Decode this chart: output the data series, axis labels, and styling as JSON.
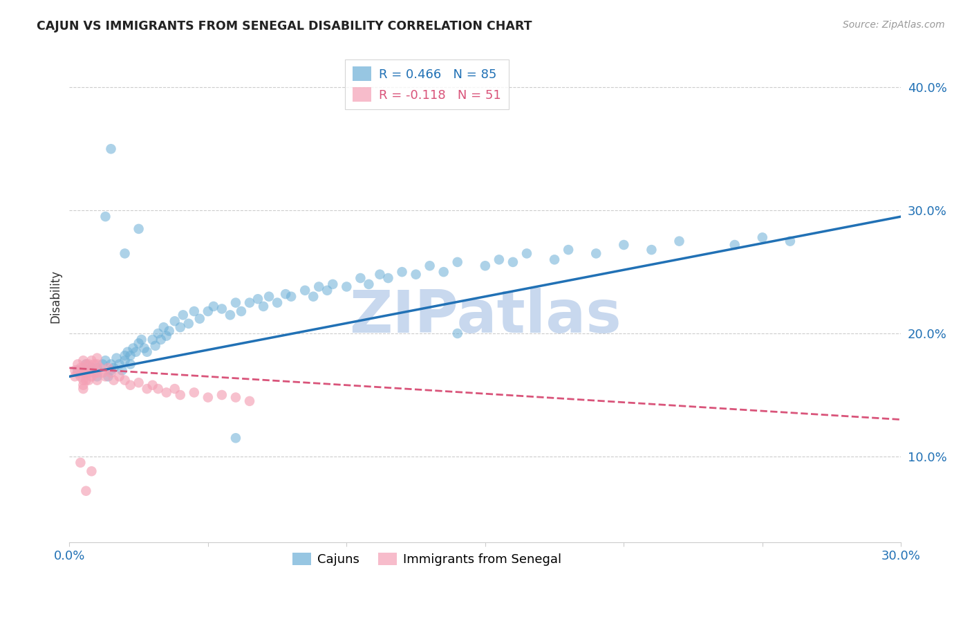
{
  "title": "CAJUN VS IMMIGRANTS FROM SENEGAL DISABILITY CORRELATION CHART",
  "source": "Source: ZipAtlas.com",
  "ylabel": "Disability",
  "xlim": [
    0.0,
    0.3
  ],
  "ylim": [
    0.03,
    0.43
  ],
  "yticks": [
    0.1,
    0.2,
    0.3,
    0.4
  ],
  "xticks": [
    0.0,
    0.05,
    0.1,
    0.15,
    0.2,
    0.25,
    0.3
  ],
  "xtick_labels": [
    "0.0%",
    "",
    "",
    "",
    "",
    "",
    "30.0%"
  ],
  "ytick_labels": [
    "10.0%",
    "20.0%",
    "30.0%",
    "40.0%"
  ],
  "legend1_label": "R = 0.466   N = 85",
  "legend2_label": "R = -0.118   N = 51",
  "legend_bottom1": "Cajuns",
  "legend_bottom2": "Immigrants from Senegal",
  "blue_color": "#6baed6",
  "pink_color": "#f4a0b5",
  "blue_line_color": "#2171b5",
  "pink_line_color": "#d9547a",
  "watermark": "ZIPatlas",
  "watermark_color": "#c8d8ee",
  "background_color": "#ffffff",
  "blue_scatter_x": [
    0.003,
    0.006,
    0.008,
    0.01,
    0.01,
    0.012,
    0.013,
    0.014,
    0.015,
    0.015,
    0.016,
    0.017,
    0.018,
    0.019,
    0.02,
    0.02,
    0.021,
    0.022,
    0.022,
    0.023,
    0.024,
    0.025,
    0.026,
    0.027,
    0.028,
    0.03,
    0.031,
    0.032,
    0.033,
    0.034,
    0.035,
    0.036,
    0.038,
    0.04,
    0.041,
    0.043,
    0.045,
    0.047,
    0.05,
    0.052,
    0.055,
    0.058,
    0.06,
    0.062,
    0.065,
    0.068,
    0.07,
    0.072,
    0.075,
    0.078,
    0.08,
    0.085,
    0.088,
    0.09,
    0.093,
    0.095,
    0.1,
    0.105,
    0.108,
    0.112,
    0.115,
    0.12,
    0.125,
    0.13,
    0.135,
    0.14,
    0.15,
    0.155,
    0.16,
    0.165,
    0.175,
    0.18,
    0.19,
    0.2,
    0.21,
    0.22,
    0.24,
    0.25,
    0.26,
    0.14,
    0.06,
    0.025,
    0.02,
    0.013,
    0.015
  ],
  "blue_scatter_y": [
    0.17,
    0.175,
    0.172,
    0.172,
    0.165,
    0.175,
    0.178,
    0.165,
    0.17,
    0.175,
    0.172,
    0.18,
    0.175,
    0.17,
    0.182,
    0.178,
    0.185,
    0.175,
    0.182,
    0.188,
    0.185,
    0.192,
    0.195,
    0.188,
    0.185,
    0.195,
    0.19,
    0.2,
    0.195,
    0.205,
    0.198,
    0.202,
    0.21,
    0.205,
    0.215,
    0.208,
    0.218,
    0.212,
    0.218,
    0.222,
    0.22,
    0.215,
    0.225,
    0.218,
    0.225,
    0.228,
    0.222,
    0.23,
    0.225,
    0.232,
    0.23,
    0.235,
    0.23,
    0.238,
    0.235,
    0.24,
    0.238,
    0.245,
    0.24,
    0.248,
    0.245,
    0.25,
    0.248,
    0.255,
    0.25,
    0.258,
    0.255,
    0.26,
    0.258,
    0.265,
    0.26,
    0.268,
    0.265,
    0.272,
    0.268,
    0.275,
    0.272,
    0.278,
    0.275,
    0.2,
    0.115,
    0.285,
    0.265,
    0.295,
    0.35
  ],
  "pink_scatter_x": [
    0.002,
    0.002,
    0.003,
    0.003,
    0.004,
    0.004,
    0.005,
    0.005,
    0.005,
    0.005,
    0.005,
    0.005,
    0.006,
    0.006,
    0.006,
    0.007,
    0.007,
    0.007,
    0.008,
    0.008,
    0.008,
    0.009,
    0.009,
    0.01,
    0.01,
    0.01,
    0.01,
    0.011,
    0.012,
    0.013,
    0.014,
    0.015,
    0.016,
    0.018,
    0.02,
    0.022,
    0.025,
    0.028,
    0.03,
    0.032,
    0.035,
    0.038,
    0.04,
    0.045,
    0.05,
    0.055,
    0.06,
    0.065,
    0.004,
    0.008,
    0.006
  ],
  "pink_scatter_y": [
    0.17,
    0.165,
    0.175,
    0.168,
    0.172,
    0.165,
    0.178,
    0.172,
    0.168,
    0.162,
    0.158,
    0.155,
    0.175,
    0.168,
    0.162,
    0.175,
    0.168,
    0.162,
    0.178,
    0.172,
    0.165,
    0.175,
    0.168,
    0.18,
    0.175,
    0.168,
    0.162,
    0.172,
    0.168,
    0.165,
    0.172,
    0.168,
    0.162,
    0.165,
    0.162,
    0.158,
    0.16,
    0.155,
    0.158,
    0.155,
    0.152,
    0.155,
    0.15,
    0.152,
    0.148,
    0.15,
    0.148,
    0.145,
    0.095,
    0.088,
    0.072
  ],
  "blue_trend_x": [
    0.0,
    0.3
  ],
  "blue_trend_y": [
    0.165,
    0.295
  ],
  "pink_trend_x": [
    0.0,
    0.3
  ],
  "pink_trend_y": [
    0.172,
    0.13
  ]
}
